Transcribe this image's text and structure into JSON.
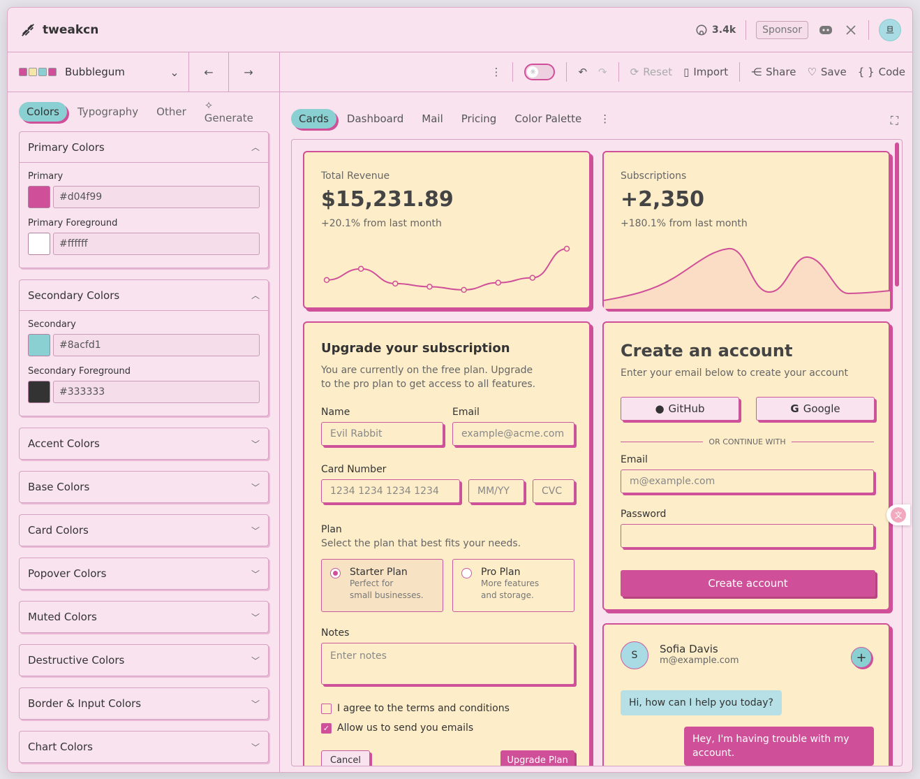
{
  "app": {
    "name": "tweakcn",
    "github_stars": "3.4k",
    "sponsor_label": "Sponsor",
    "avatar_initials": "旦"
  },
  "theme": {
    "name": "Bubblegum",
    "swatch_colors": [
      "#d04f99",
      "#f6e6a8",
      "#8acfd1",
      "#d04f99"
    ]
  },
  "sidebar": {
    "tabs": [
      "Colors",
      "Typography",
      "Other",
      "Generate"
    ],
    "primary_group": {
      "title": "Primary Colors",
      "fields": [
        {
          "label": "Primary",
          "value": "#d04f99"
        },
        {
          "label": "Primary Foreground",
          "value": "#ffffff"
        }
      ]
    },
    "secondary_group": {
      "title": "Secondary Colors",
      "fields": [
        {
          "label": "Secondary",
          "value": "#8acfd1"
        },
        {
          "label": "Secondary Foreground",
          "value": "#333333"
        }
      ]
    },
    "collapsed_groups": [
      "Accent Colors",
      "Base Colors",
      "Card Colors",
      "Popover Colors",
      "Muted Colors",
      "Destructive Colors",
      "Border & Input Colors",
      "Chart Colors"
    ]
  },
  "toolbar": {
    "reset": "Reset",
    "import": "Import",
    "share": "Share",
    "save": "Save",
    "code": "Code"
  },
  "preview_tabs": [
    "Cards",
    "Dashboard",
    "Mail",
    "Pricing",
    "Color Palette"
  ],
  "revenue": {
    "label": "Total Revenue",
    "value": "$15,231.89",
    "delta": "+20.1% from last month",
    "series": [
      0.3,
      0.55,
      0.22,
      0.15,
      0.08,
      0.24,
      0.35,
      1.0
    ]
  },
  "subs": {
    "label": "Subscriptions",
    "value": "+2,350",
    "delta": "+180.1% from last month"
  },
  "upgrade": {
    "title": "Upgrade your subscription",
    "desc1": "You are currently on the free plan. Upgrade",
    "desc2": "to the pro plan to get access to all features.",
    "name_label": "Name",
    "name_placeholder": "Evil Rabbit",
    "email_label": "Email",
    "email_placeholder": "example@acme.com",
    "card_label": "Card Number",
    "card_placeholder": "1234 1234 1234 1234",
    "exp_placeholder": "MM/YY",
    "cvc_placeholder": "CVC",
    "plan_label": "Plan",
    "plan_desc": "Select the plan that best fits your needs.",
    "starter_title": "Starter Plan",
    "starter_d1": "Perfect for",
    "starter_d2": "small businesses.",
    "pro_title": "Pro Plan",
    "pro_d1": "More features",
    "pro_d2": "and storage.",
    "notes_label": "Notes",
    "notes_placeholder": "Enter notes",
    "terms": "I agree to the terms and conditions",
    "emails": "Allow us to send you emails",
    "cancel": "Cancel",
    "submit": "Upgrade Plan"
  },
  "account": {
    "title": "Create an account",
    "desc": "Enter your email below to create your account",
    "github": "GitHub",
    "google": "Google",
    "divider": "OR CONTINUE WITH",
    "email_label": "Email",
    "email_placeholder": "m@example.com",
    "password_label": "Password",
    "submit": "Create account"
  },
  "chat": {
    "avatar": "S",
    "name": "Sofia Davis",
    "email": "m@example.com",
    "msg1": "Hi, how can I help you today?",
    "msg2a": "Hey, I'm having trouble with my",
    "msg2b": "account."
  }
}
